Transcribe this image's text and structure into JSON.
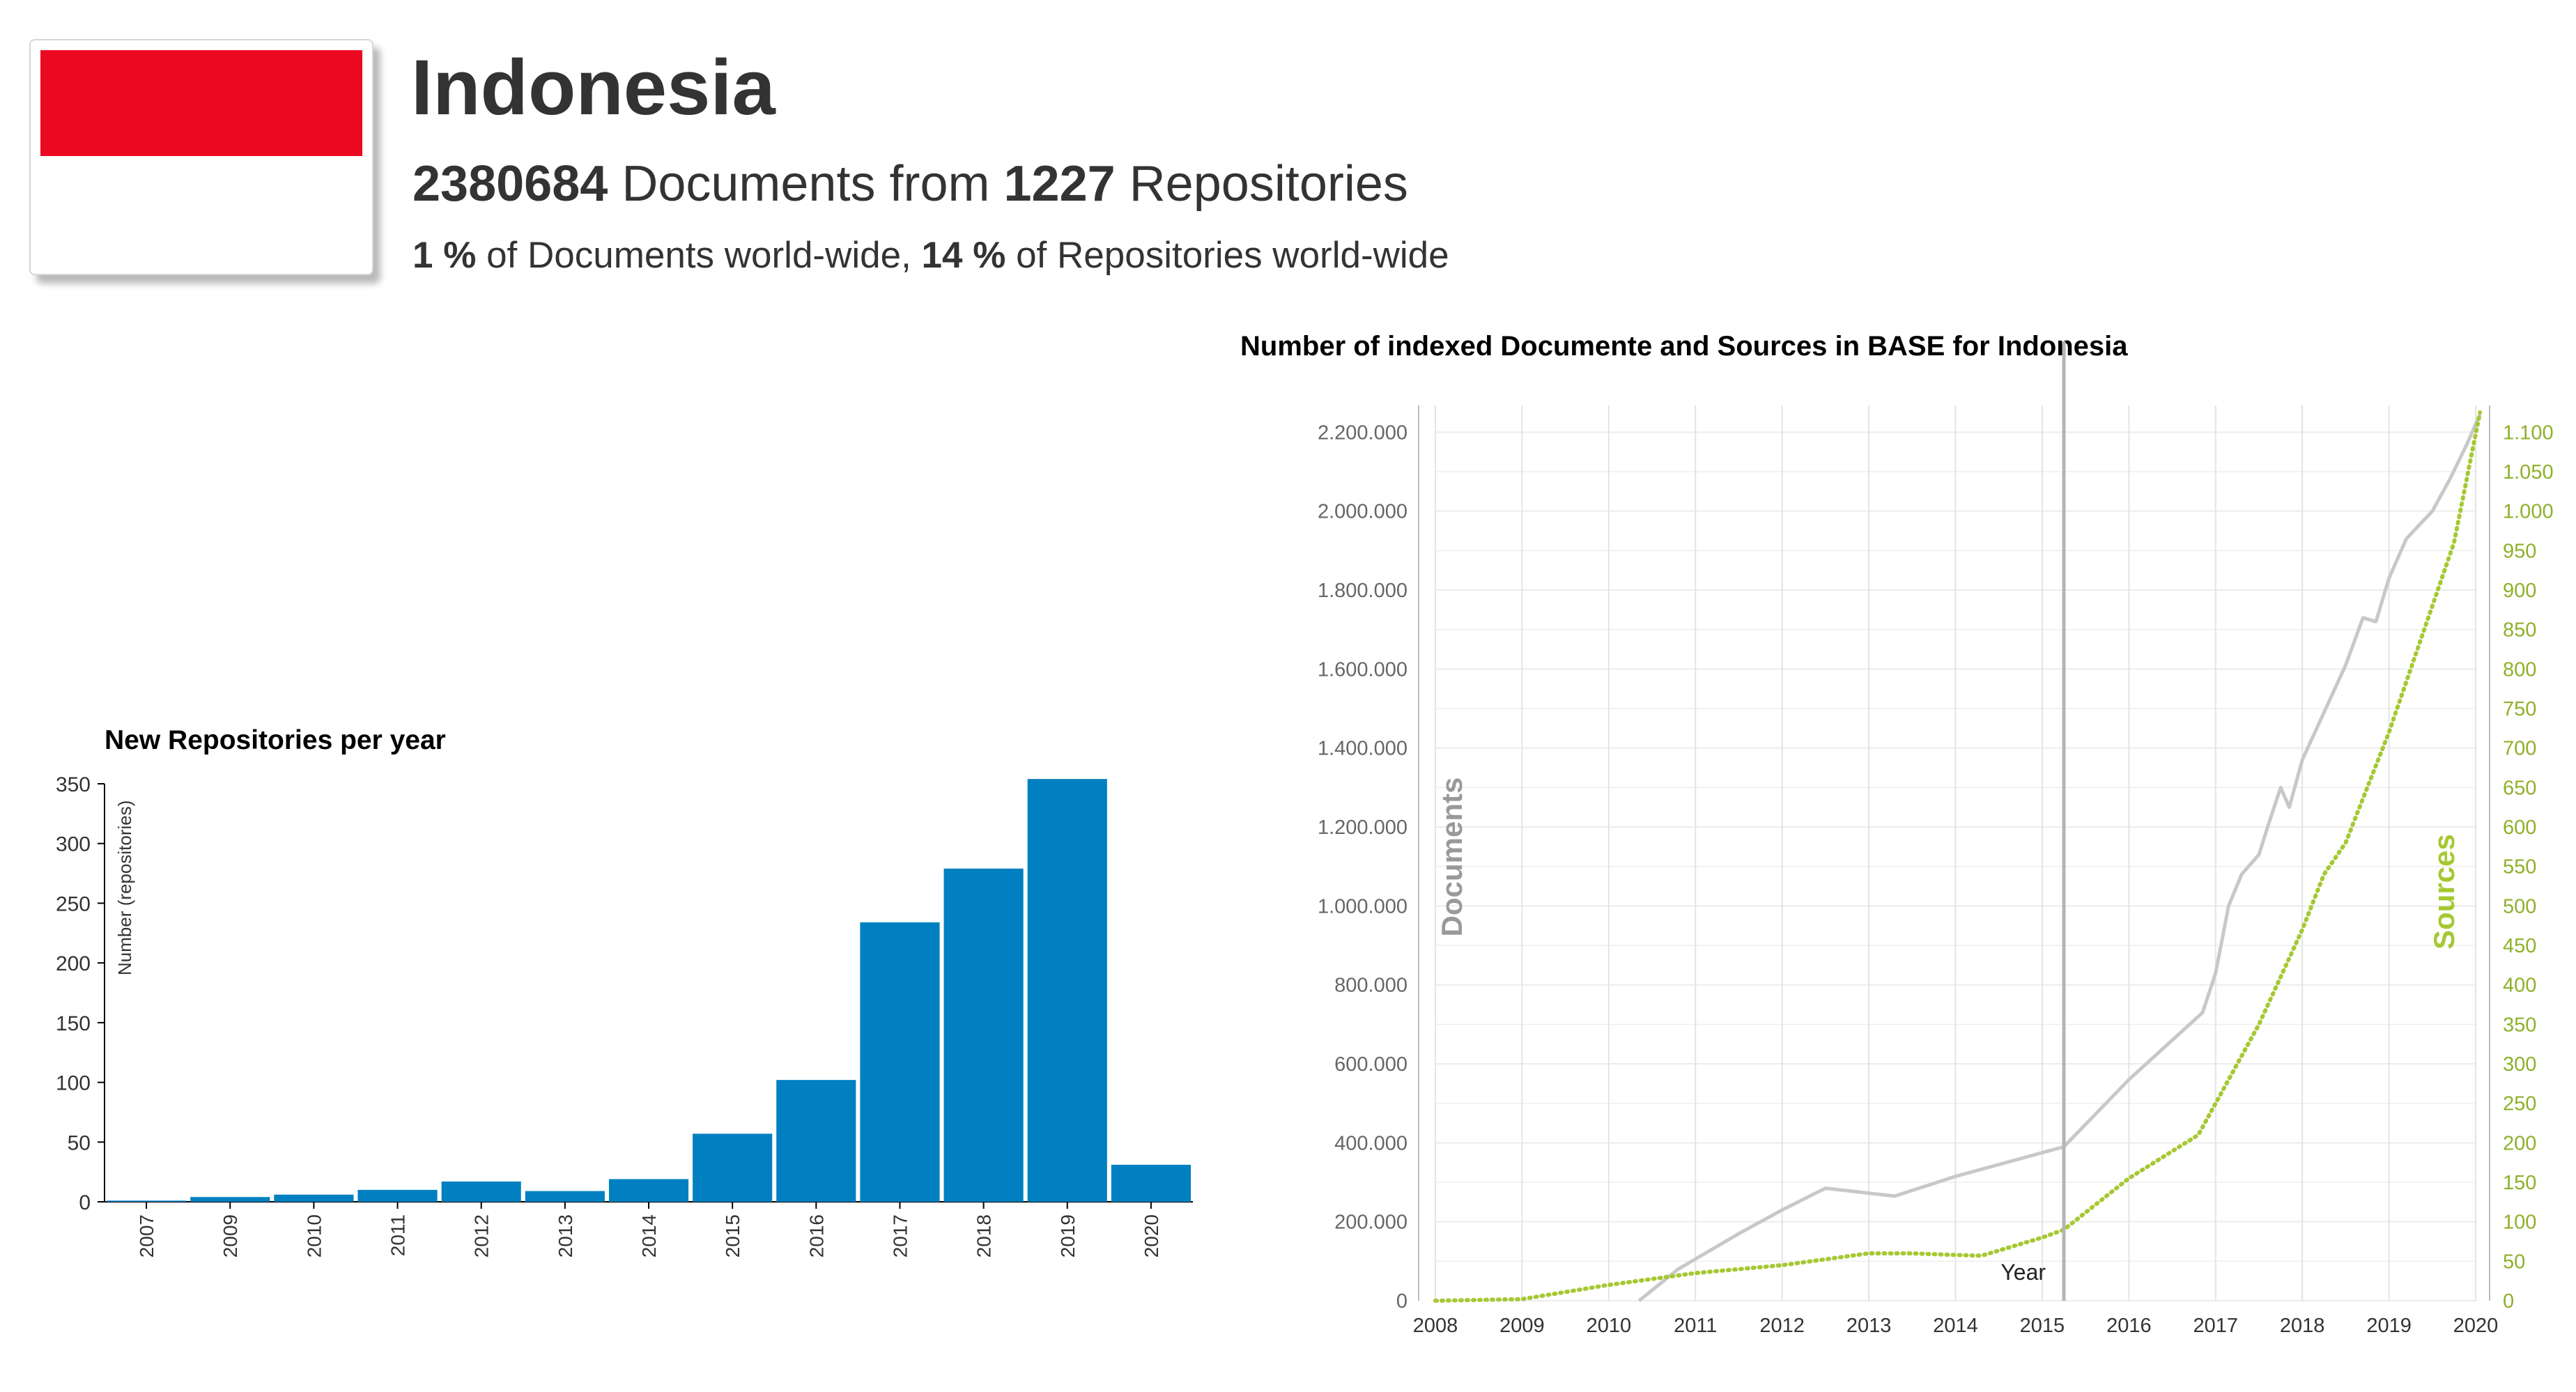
{
  "header": {
    "country_name": "Indonesia",
    "documents_count": "2380684",
    "documents_label": "Documents from",
    "repositories_count": "1227",
    "repositories_label": "Repositories",
    "docs_percent": "1 %",
    "docs_percent_label": "of Documents world-wide,",
    "repos_percent": "14 %",
    "repos_percent_label": "of Repositories world-wide",
    "flag_colors": {
      "top": "#ec0a23",
      "bottom": "#ffffff"
    }
  },
  "chart_data": [
    {
      "type": "bar",
      "title": "New Repositories per year",
      "xlabel": "",
      "ylabel": "Number (repositories)",
      "categories": [
        "2007",
        "2009",
        "2010",
        "2011",
        "2012",
        "2013",
        "2014",
        "2015",
        "2016",
        "2017",
        "2018",
        "2019",
        "2020"
      ],
      "values": [
        1,
        4,
        6,
        10,
        17,
        9,
        19,
        57,
        102,
        234,
        279,
        354,
        31
      ],
      "ylim": [
        0,
        350
      ],
      "yticks": [
        0,
        50,
        100,
        150,
        200,
        250,
        300,
        350
      ],
      "color": "#0080c0"
    },
    {
      "type": "line",
      "title": "Number of indexed Documente and Sources in BASE for Indonesia",
      "xlabel": "Year",
      "ylabel": "Documents",
      "y2label": "Sources",
      "x_ticks": [
        "2008",
        "2009",
        "2010",
        "2011",
        "2012",
        "2013",
        "2014",
        "2015",
        "2016",
        "2017",
        "2018",
        "2019",
        "2020"
      ],
      "xlim": [
        2008,
        2020
      ],
      "ylim": [
        0,
        2250000
      ],
      "y2lim": [
        0,
        1125
      ],
      "y_ticks": [
        0,
        200000,
        400000,
        600000,
        800000,
        1000000,
        1200000,
        1400000,
        1600000,
        1800000,
        2000000,
        2200000
      ],
      "y_tick_labels": [
        "0",
        "200.000",
        "400.000",
        "600.000",
        "800.000",
        "1.000.000",
        "1.200.000",
        "1.400.000",
        "1.600.000",
        "1.800.000",
        "2.000.000",
        "2.200.000"
      ],
      "y2_ticks": [
        0,
        50,
        100,
        150,
        200,
        250,
        300,
        350,
        400,
        450,
        500,
        550,
        600,
        650,
        700,
        750,
        800,
        850,
        900,
        950,
        1000,
        1050,
        1100
      ],
      "y2_tick_labels": [
        "0",
        "50",
        "100",
        "150",
        "200",
        "250",
        "300",
        "350",
        "400",
        "450",
        "500",
        "550",
        "600",
        "650",
        "700",
        "750",
        "800",
        "850",
        "900",
        "950",
        "1.000",
        "1.050",
        "1.100"
      ],
      "cursor_x": 2015.25,
      "series": [
        {
          "name": "Documents",
          "axis": "left",
          "color": "#c8c8c8",
          "style": "solid",
          "x": [
            2010.35,
            2010.8,
            2011.5,
            2012.0,
            2012.5,
            2013.3,
            2014.0,
            2014.5,
            2015.25,
            2016.0,
            2016.85,
            2017.0,
            2017.15,
            2017.3,
            2017.5,
            2017.6,
            2017.75,
            2017.85,
            2018.0,
            2018.25,
            2018.5,
            2018.7,
            2018.85,
            2019.0,
            2019.2,
            2019.5,
            2019.7,
            2019.9,
            2020.05
          ],
          "y": [
            0,
            80000,
            170000,
            230000,
            285000,
            265000,
            315000,
            345000,
            390000,
            560000,
            730000,
            830000,
            1000000,
            1080000,
            1130000,
            1200000,
            1300000,
            1250000,
            1370000,
            1490000,
            1610000,
            1730000,
            1720000,
            1830000,
            1930000,
            2000000,
            2080000,
            2170000,
            2245000
          ]
        },
        {
          "name": "Sources",
          "axis": "right",
          "color": "#a6c832",
          "style": "dotted",
          "x": [
            2008.0,
            2009.0,
            2010.0,
            2011.0,
            2012.0,
            2013.0,
            2013.5,
            2014.0,
            2014.3,
            2015.0,
            2015.25,
            2016.0,
            2016.8,
            2017.0,
            2017.25,
            2017.5,
            2017.75,
            2018.0,
            2018.25,
            2018.5,
            2018.75,
            2019.0,
            2019.25,
            2019.5,
            2019.75,
            2020.05
          ],
          "y": [
            0,
            2,
            20,
            35,
            45,
            60,
            60,
            58,
            57,
            80,
            90,
            155,
            210,
            250,
            300,
            350,
            410,
            470,
            540,
            580,
            650,
            720,
            800,
            880,
            960,
            1125
          ]
        }
      ]
    }
  ]
}
